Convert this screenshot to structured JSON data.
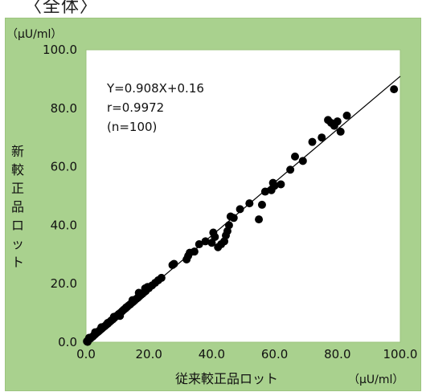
{
  "header": {
    "partial_label": "〈全体〉"
  },
  "chart_data": {
    "type": "scatter",
    "xlabel": "従来較正品ロット",
    "ylabel": "新較正品ロット",
    "x_unit": "（μU/ml）",
    "y_unit": "（μU/ml）",
    "xlim": [
      0,
      100
    ],
    "ylim": [
      0,
      100
    ],
    "x_ticks": [
      "0.0",
      "20.0",
      "40.0",
      "60.0",
      "80.0",
      "100.0"
    ],
    "y_ticks": [
      "0.0",
      "20.0",
      "40.0",
      "60.0",
      "80.0",
      "100.0"
    ],
    "grid": false,
    "annotations": [
      "Y=0.908X+0.16",
      "r=0.9972",
      "(n=100)"
    ],
    "regression": {
      "slope": 0.908,
      "intercept": 0.16,
      "x_range": [
        0,
        100
      ]
    },
    "colors": {
      "panel": "#a9d18e",
      "plot_area": "#ffffff",
      "points": "#000000"
    },
    "points": [
      [
        0.3,
        0.3
      ],
      [
        0.6,
        0.6
      ],
      [
        0.9,
        0.9
      ],
      [
        1.2,
        1.1
      ],
      [
        1.5,
        1.4
      ],
      [
        1.8,
        1.7
      ],
      [
        2.1,
        1.9
      ],
      [
        2.4,
        2.2
      ],
      [
        2.7,
        2.5
      ],
      [
        3.0,
        2.8
      ],
      [
        3.4,
        3.2
      ],
      [
        3.8,
        3.5
      ],
      [
        4.2,
        3.9
      ],
      [
        4.6,
        4.3
      ],
      [
        5.0,
        4.6
      ],
      [
        5.5,
        5.1
      ],
      [
        6.0,
        5.5
      ],
      [
        6.5,
        6.0
      ],
      [
        7.0,
        6.4
      ],
      [
        7.5,
        6.9
      ],
      [
        8.0,
        7.4
      ],
      [
        8.5,
        7.8
      ],
      [
        9.0,
        8.3
      ],
      [
        9.5,
        8.8
      ],
      [
        10.0,
        9.2
      ],
      [
        10.5,
        9.7
      ],
      [
        11.0,
        10.1
      ],
      [
        11.5,
        10.6
      ],
      [
        12.0,
        11.1
      ],
      [
        12.5,
        11.5
      ],
      [
        13.0,
        12.0
      ],
      [
        13.5,
        12.5
      ],
      [
        14.0,
        12.9
      ],
      [
        14.5,
        13.4
      ],
      [
        15.0,
        13.8
      ],
      [
        15.5,
        14.3
      ],
      [
        16.0,
        14.8
      ],
      [
        16.5,
        15.2
      ],
      [
        17.0,
        15.7
      ],
      [
        17.5,
        16.2
      ],
      [
        18.0,
        16.6
      ],
      [
        18.5,
        17.1
      ],
      [
        19.0,
        17.5
      ],
      [
        20.0,
        18.5
      ],
      [
        21.0,
        19.4
      ],
      [
        22.0,
        20.3
      ],
      [
        23.0,
        21.2
      ],
      [
        24.0,
        22.0
      ],
      [
        10.8,
        9.0
      ],
      [
        12.8,
        11.9
      ],
      [
        14.8,
        14.4
      ],
      [
        16.8,
        16.9
      ],
      [
        18.8,
        18.4
      ],
      [
        2.9,
        3.4
      ],
      [
        4.9,
        5.1
      ],
      [
        6.9,
        6.6
      ],
      [
        8.9,
        8.7
      ],
      [
        1.0,
        1.5
      ],
      [
        0.5,
        0.1
      ],
      [
        19.6,
        18.9
      ],
      [
        27.5,
        26.4
      ],
      [
        28.0,
        26.8
      ],
      [
        32.0,
        28.3
      ],
      [
        32.5,
        29.5
      ],
      [
        33.0,
        30.6
      ],
      [
        34.5,
        31.0
      ],
      [
        40.0,
        34.0
      ],
      [
        40.5,
        37.5
      ],
      [
        41.0,
        36.0
      ],
      [
        42.0,
        32.5
      ],
      [
        43.0,
        33.5
      ],
      [
        44.0,
        34.5
      ],
      [
        44.5,
        36.5
      ],
      [
        45.0,
        38.0
      ],
      [
        45.5,
        40.0
      ],
      [
        46.0,
        43.0
      ],
      [
        49.0,
        45.5
      ],
      [
        55.0,
        42.0
      ],
      [
        56.0,
        47.0
      ],
      [
        59.0,
        52.0
      ],
      [
        60.0,
        53.5
      ],
      [
        59.5,
        54.5
      ],
      [
        62.0,
        54.0
      ],
      [
        65.0,
        59.0
      ],
      [
        66.5,
        63.5
      ],
      [
        69.0,
        62.0
      ],
      [
        72.0,
        68.5
      ],
      [
        75.0,
        70.0
      ],
      [
        77.0,
        76.0
      ],
      [
        78.0,
        75.0
      ],
      [
        79.0,
        74.0
      ],
      [
        80.0,
        75.5
      ],
      [
        81.0,
        72.0
      ],
      [
        83.0,
        77.5
      ],
      [
        98.0,
        86.5
      ],
      [
        36.0,
        33.5
      ],
      [
        38.0,
        34.5
      ],
      [
        47.0,
        42.5
      ],
      [
        52.0,
        47.5
      ],
      [
        57.0,
        51.5
      ]
    ]
  }
}
